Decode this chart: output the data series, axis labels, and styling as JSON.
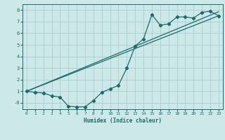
{
  "xlabel": "Humidex (Indice chaleur)",
  "bg_color": "#cce8e8",
  "grid_color": "#aacfcf",
  "line_color": "#1a6b6b",
  "xlim": [
    -0.5,
    23.5
  ],
  "ylim": [
    -0.55,
    8.5
  ],
  "xticks": [
    0,
    1,
    2,
    3,
    4,
    5,
    6,
    7,
    8,
    9,
    10,
    11,
    12,
    13,
    14,
    15,
    16,
    17,
    18,
    19,
    20,
    21,
    22,
    23
  ],
  "yticks": [
    0,
    1,
    2,
    3,
    4,
    5,
    6,
    7,
    8
  ],
  "ytick_labels": [
    "-0",
    "1",
    "2",
    "3",
    "4",
    "5",
    "6",
    "7",
    "8"
  ],
  "line1_x": [
    0,
    1,
    2,
    3,
    4,
    5,
    6,
    7,
    8,
    9,
    10,
    11,
    12,
    13,
    14,
    15,
    16,
    17,
    18,
    19,
    20,
    21,
    22,
    23
  ],
  "line1_y": [
    1.0,
    0.9,
    0.85,
    0.6,
    0.5,
    -0.3,
    -0.35,
    -0.35,
    0.2,
    0.9,
    1.2,
    1.5,
    3.0,
    4.9,
    5.5,
    7.6,
    6.7,
    6.8,
    7.4,
    7.4,
    7.3,
    7.8,
    7.9,
    7.5
  ],
  "line2_x": [
    0,
    23
  ],
  "line2_y": [
    1.0,
    7.5
  ],
  "line3_x": [
    0,
    23
  ],
  "line3_y": [
    1.0,
    7.85
  ]
}
